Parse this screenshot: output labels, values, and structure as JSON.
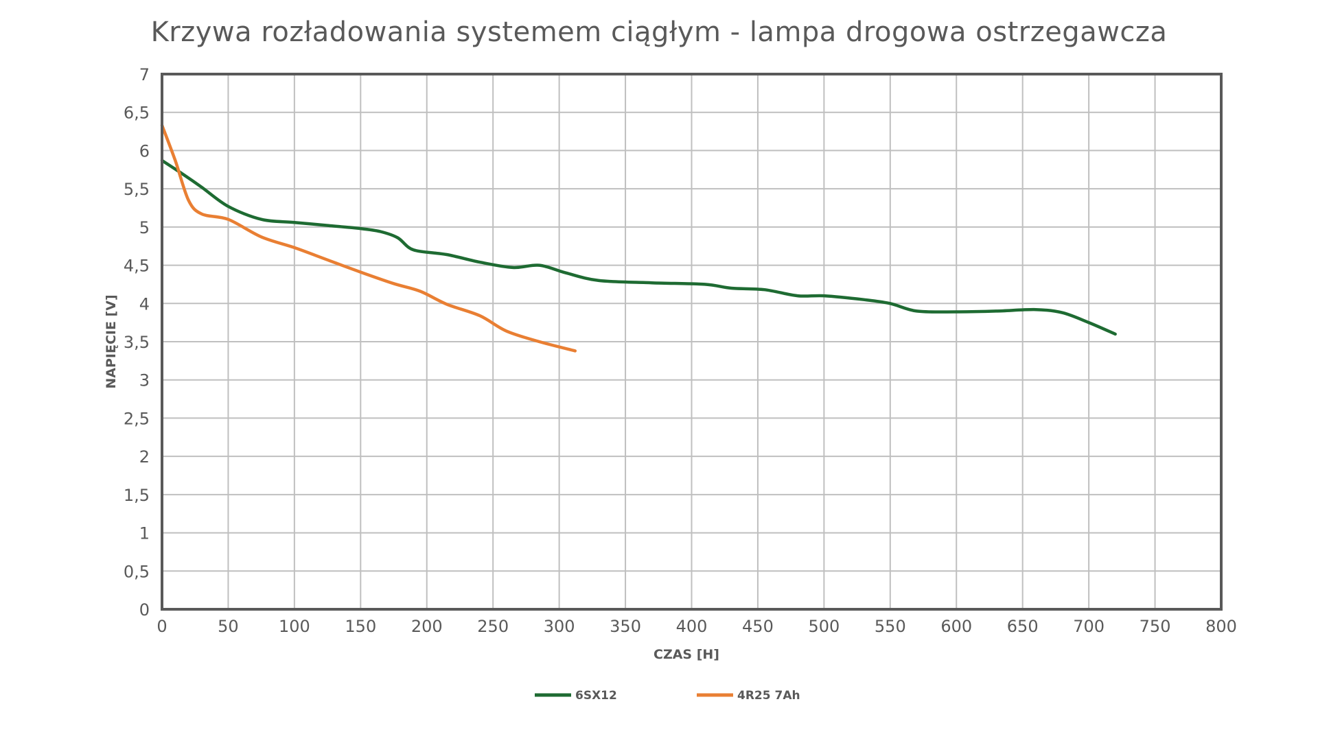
{
  "chart_data": {
    "type": "line",
    "title": "Krzywa rozładowania systemem ciągłym - lampa drogowa ostrzegawcza",
    "xlabel": "CZAS [H]",
    "ylabel": "NAPIĘCIE [V]",
    "xlim": [
      0,
      800
    ],
    "ylim": [
      0,
      7
    ],
    "x_ticks": [
      0,
      50,
      100,
      150,
      200,
      250,
      300,
      350,
      400,
      450,
      500,
      550,
      600,
      650,
      700,
      750,
      800
    ],
    "y_ticks": [
      0,
      0.5,
      1,
      1.5,
      2,
      2.5,
      3,
      3.5,
      4,
      4.5,
      5,
      5.5,
      6,
      6.5,
      7
    ],
    "x_tick_labels": [
      "0",
      "50",
      "100",
      "150",
      "200",
      "250",
      "300",
      "350",
      "400",
      "450",
      "500",
      "550",
      "600",
      "650",
      "700",
      "750",
      "800"
    ],
    "y_tick_labels": [
      "0",
      "0,5",
      "1",
      "1,5",
      "2",
      "2,5",
      "3",
      "3,5",
      "4",
      "4,5",
      "5",
      "5,5",
      "6",
      "6,5",
      "7"
    ],
    "grid": true,
    "legend_position": "bottom",
    "series": [
      {
        "name": "6SX12",
        "color": "#1e6b32",
        "x": [
          0,
          15,
          30,
          50,
          75,
          100,
          125,
          150,
          165,
          178,
          190,
          215,
          240,
          265,
          285,
          305,
          330,
          370,
          410,
          430,
          455,
          480,
          500,
          530,
          550,
          570,
          600,
          630,
          660,
          680,
          700,
          720
        ],
        "y": [
          5.87,
          5.7,
          5.52,
          5.27,
          5.1,
          5.06,
          5.02,
          4.98,
          4.94,
          4.86,
          4.7,
          4.64,
          4.54,
          4.47,
          4.5,
          4.4,
          4.3,
          4.27,
          4.25,
          4.2,
          4.18,
          4.1,
          4.1,
          4.05,
          4.0,
          3.9,
          3.89,
          3.9,
          3.92,
          3.88,
          3.75,
          3.6
        ]
      },
      {
        "name": "4R25 7Ah",
        "color": "#e97f33",
        "x": [
          0,
          10,
          20,
          30,
          50,
          75,
          100,
          125,
          150,
          175,
          195,
          215,
          240,
          260,
          285,
          312
        ],
        "y": [
          6.33,
          5.87,
          5.35,
          5.17,
          5.1,
          4.87,
          4.73,
          4.57,
          4.41,
          4.26,
          4.16,
          3.99,
          3.84,
          3.64,
          3.5,
          3.38
        ]
      }
    ]
  }
}
